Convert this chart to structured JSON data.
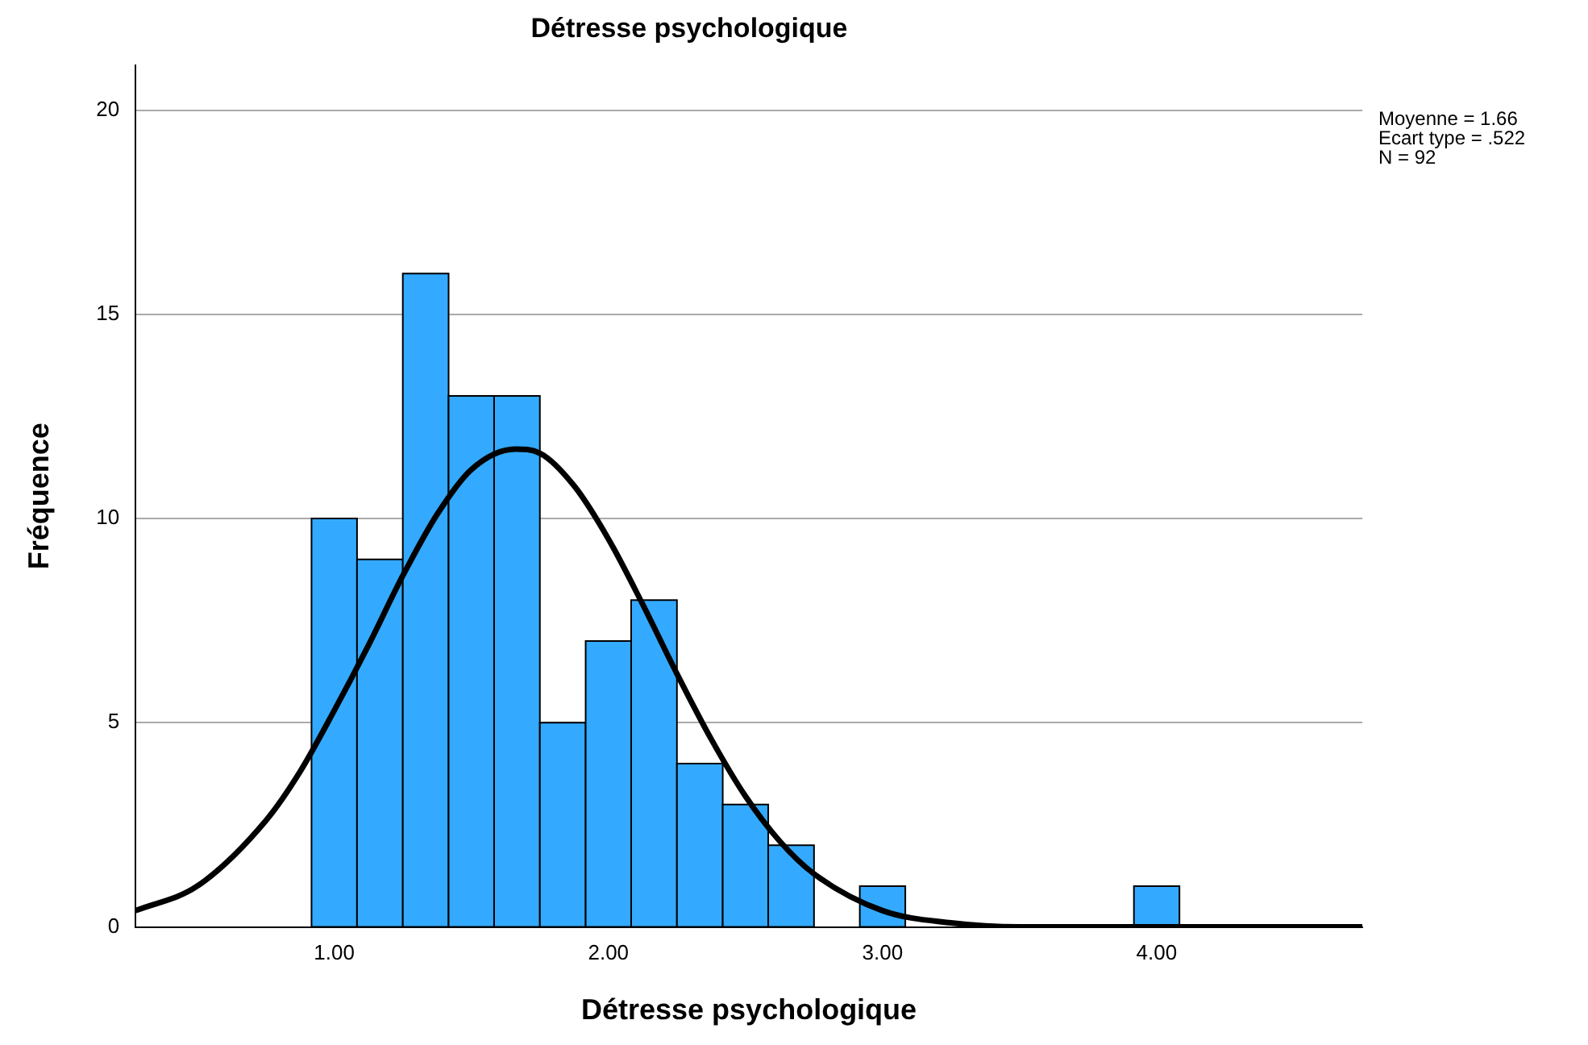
{
  "chart_data": {
    "type": "histogram",
    "title": "Détresse psychologique",
    "xlabel": "Détresse psychologique",
    "ylabel": "Fréquence",
    "bins": [
      0.917,
      1.083,
      1.25,
      1.417,
      1.583,
      1.75,
      1.917,
      2.083,
      2.25,
      2.417,
      2.583,
      2.75,
      2.917,
      3.083,
      3.25,
      3.417,
      3.583,
      3.75,
      3.917,
      4.083
    ],
    "series": [
      {
        "type": "histogram",
        "color": "#33aaff",
        "values": [
          10,
          9,
          16,
          13,
          13,
          5,
          7,
          8,
          4,
          3,
          2,
          0,
          1,
          0,
          0,
          0,
          0,
          0,
          1
        ]
      },
      {
        "type": "line",
        "color": "#000000",
        "x": [
          0.275,
          0.5,
          0.75,
          0.875,
          1.0,
          1.125,
          1.25,
          1.375,
          1.5,
          1.66,
          1.75,
          1.875,
          2.0,
          2.125,
          2.25,
          2.375,
          2.5,
          2.625,
          2.75,
          3.0,
          3.25,
          3.5,
          4.0,
          4.75
        ],
        "values": [
          0.4,
          1.0,
          2.6,
          3.8,
          5.3,
          6.9,
          8.6,
          10.1,
          11.2,
          11.7,
          11.6,
          10.8,
          9.5,
          7.9,
          6.2,
          4.6,
          3.2,
          2.1,
          1.3,
          0.4,
          0.1,
          0.0,
          0.0,
          0.0
        ]
      }
    ],
    "xlim": [
      0.275,
      4.75
    ],
    "xticks": [
      {
        "value": 1,
        "label": "1.00"
      },
      {
        "value": 2,
        "label": "2.00"
      },
      {
        "value": 3,
        "label": "3.00"
      },
      {
        "value": 4,
        "label": "4.00"
      }
    ],
    "ylim": [
      0,
      21.1
    ],
    "yticks": [
      0,
      5,
      10,
      15,
      20
    ],
    "grid": "y",
    "legend": false,
    "marker": "none",
    "line_style": "solid",
    "annotations": [
      "Moyenne = 1.66",
      "Ecart type = .522",
      "N = 92"
    ]
  }
}
